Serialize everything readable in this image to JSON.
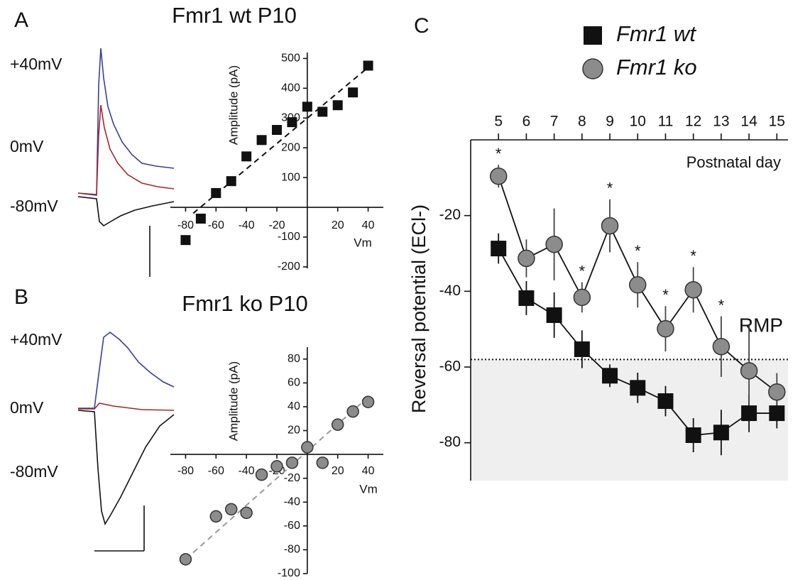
{
  "chart_data": [
    {
      "type": "scatter",
      "label": "A",
      "title": "Fmr1 wt P10",
      "trace_labels": [
        "+40mV",
        "0mV",
        "-80mV"
      ],
      "trace_colors": [
        "#3a3d9c",
        "#a3295a",
        "#111111"
      ],
      "xlabel": "Vm",
      "ylabel": "Amplitude (pA)",
      "x": [
        -80,
        -70,
        -60,
        -50,
        -40,
        -30,
        -20,
        -10,
        0,
        10,
        20,
        30,
        40
      ],
      "values": [
        -110,
        -38,
        48,
        88,
        171,
        226,
        260,
        286,
        338,
        321,
        343,
        386,
        476
      ],
      "marker": "square",
      "color": "#111111",
      "fit": {
        "x": [
          -75,
          40
        ],
        "y": [
          -20,
          470
        ]
      },
      "xlim": [
        -90,
        50
      ],
      "ylim": [
        -205,
        520
      ],
      "xticks": [
        -80,
        -60,
        -40,
        -20,
        20,
        40
      ],
      "yticks": [
        -200,
        -100,
        100,
        200,
        300,
        400,
        500
      ]
    },
    {
      "type": "scatter",
      "label": "B",
      "title": "Fmr1 ko P10",
      "trace_labels": [
        "+40mV",
        "0mV",
        "-80mV"
      ],
      "trace_colors": [
        "#3a3d9c",
        "#a3295a",
        "#111111"
      ],
      "xlabel": "Vm",
      "ylabel": "Amplitude (pA)",
      "x": [
        -80,
        -60,
        -50,
        -40,
        -30,
        -20,
        -10,
        0,
        10,
        20,
        30,
        40
      ],
      "values": [
        -88,
        -52,
        -46,
        -49,
        -17,
        -10,
        -7,
        6,
        -7,
        25,
        36,
        44
      ],
      "marker": "circle",
      "color": "#8c8c8c",
      "fit": {
        "x": [
          -80,
          40
        ],
        "y": [
          -88,
          48
        ]
      },
      "xlim": [
        -90,
        50
      ],
      "ylim": [
        -100,
        90
      ],
      "xticks": [
        -80,
        -60,
        -40,
        -20,
        20,
        40
      ],
      "yticks": [
        -100,
        -80,
        -60,
        -40,
        -20,
        20,
        40,
        60,
        80
      ]
    },
    {
      "type": "errorline",
      "label": "C",
      "xlabel": "Postnatal day",
      "ylabel": "Reversal potential (ECl-)",
      "x": [
        5,
        6,
        7,
        8,
        9,
        10,
        11,
        12,
        13,
        14,
        15
      ],
      "series": [
        {
          "name": "Fmr1 wt",
          "marker": "square",
          "color": "#111111",
          "values": [
            -28.7,
            -41.8,
            -46.3,
            -55.3,
            -62.3,
            -65.5,
            -69,
            -78,
            -77.3,
            -72.2,
            -72.2
          ],
          "errors": [
            4,
            4.5,
            6,
            5,
            3,
            4,
            4,
            4.5,
            6,
            5,
            4
          ]
        },
        {
          "name": "Fmr1 ko",
          "marker": "circle",
          "color": "#8c8c8c",
          "values": [
            -9.6,
            -31.3,
            -27.6,
            -41.6,
            -22.7,
            -38.3,
            -49.9,
            -39.6,
            -54.6,
            -61,
            -66.6
          ],
          "errors": [
            3,
            5,
            9.5,
            4,
            7,
            6,
            6,
            6,
            8,
            12,
            5
          ]
        }
      ],
      "reference": {
        "label": "RMP",
        "value": -58
      },
      "annotations": [
        {
          "text": "*",
          "x": 5
        },
        {
          "text": "*",
          "x": 8
        },
        {
          "text": "*",
          "x": 9
        },
        {
          "text": "*",
          "x": 10
        },
        {
          "text": "*",
          "x": 11
        },
        {
          "text": "*",
          "x": 12
        },
        {
          "text": "*",
          "x": 13
        }
      ],
      "xlim": [
        4,
        15.4
      ],
      "ylim": [
        -90,
        0
      ],
      "xticks": [
        5,
        6,
        7,
        8,
        9,
        10,
        11,
        12,
        13,
        14,
        15
      ],
      "yticks": [
        -80,
        -60,
        -40,
        -20
      ]
    }
  ]
}
